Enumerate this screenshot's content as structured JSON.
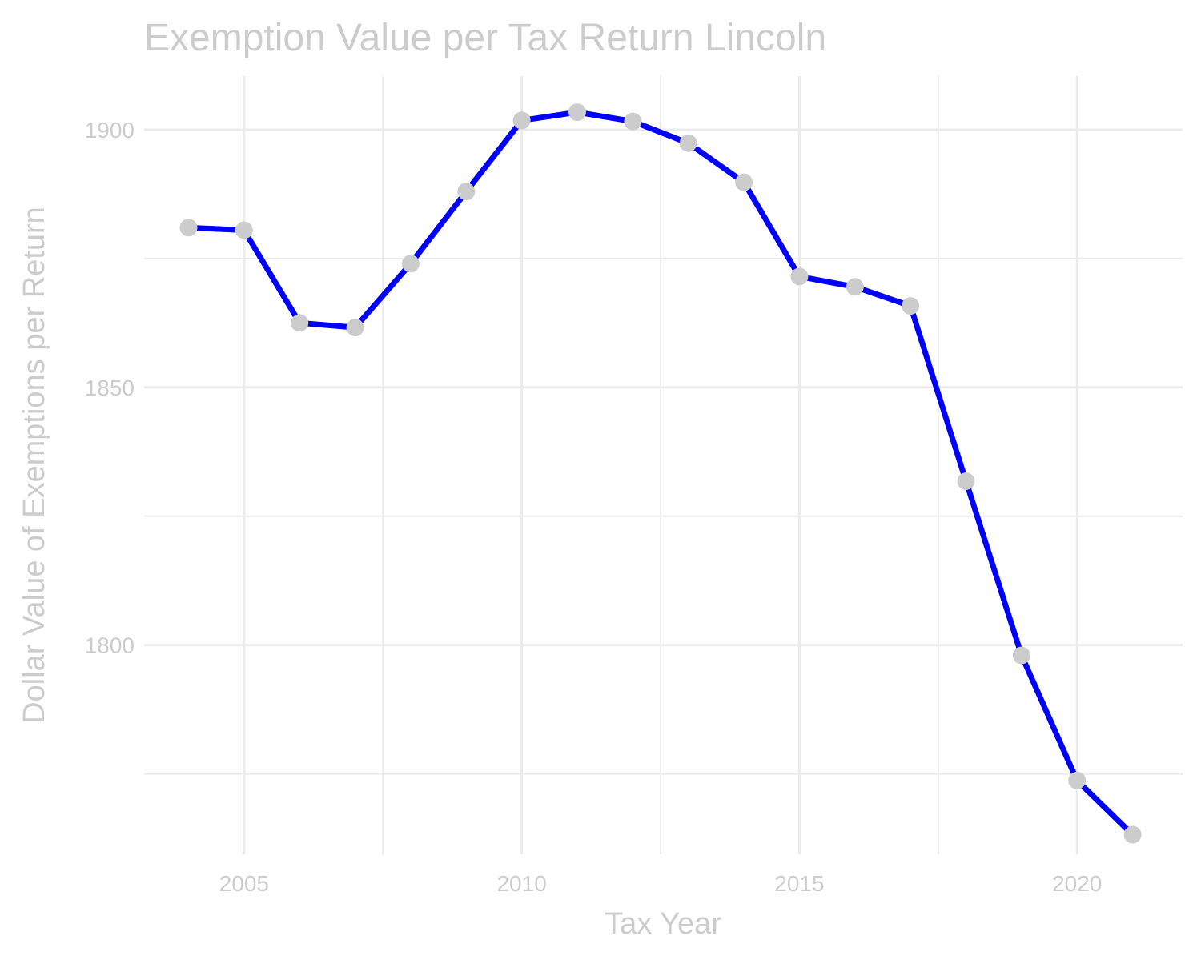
{
  "chart_data": {
    "type": "line",
    "title": "Exemption Value per Tax Return Lincoln",
    "xlabel": "Tax Year",
    "ylabel": "Dollar Value of Exemptions per Return",
    "x": [
      2004,
      2005,
      2006,
      2007,
      2008,
      2009,
      2010,
      2011,
      2012,
      2013,
      2014,
      2015,
      2016,
      2017,
      2018,
      2019,
      2020,
      2021
    ],
    "series": [
      {
        "values": [
          1881,
          1880.5,
          1862.5,
          1861.6,
          1874,
          1888,
          1901.8,
          1903.4,
          1901.6,
          1897.4,
          1889.8,
          1871.5,
          1869.5,
          1865.8,
          1831.8,
          1798,
          1773.7,
          1763.2
        ]
      }
    ],
    "x_ticks": [
      2005,
      2010,
      2015,
      2020
    ],
    "y_ticks": [
      1800,
      1850,
      1900
    ],
    "xlim": [
      2003.2,
      2021.9
    ],
    "ylim": [
      1759.4,
      1910.4
    ],
    "grid": true,
    "colors": {
      "line": "#0000ff",
      "points": "#cccccc",
      "text": "#cccccc",
      "grid": "#ebebeb"
    }
  }
}
